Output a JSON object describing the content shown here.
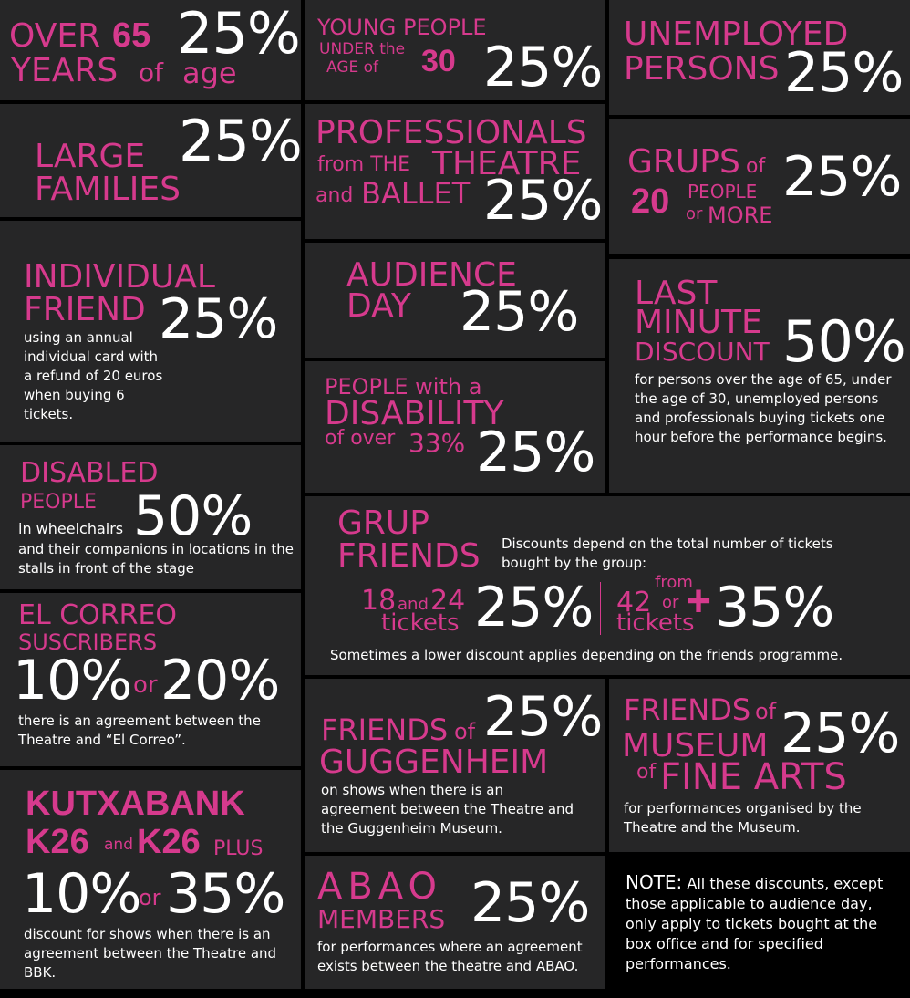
{
  "over65": {
    "over": "OVER",
    "num": "65",
    "years": "YEARS",
    "of": "of",
    "age": "age",
    "pct": "25%"
  },
  "young": {
    "line1": "YOUNG PEOPLE",
    "under": "UNDER the",
    "age": "AGE of",
    "num": "30",
    "pct": "25%"
  },
  "unemployed": {
    "line1": "UNEMPLOYED",
    "line2": "PERSONS",
    "pct": "25%"
  },
  "large": {
    "line1": "LARGE",
    "line2": "FAMILIES",
    "pct": "25%"
  },
  "professionals": {
    "line1": "PROFESSIONALS",
    "from": "from THE",
    "theatre": "THEATRE",
    "and": "and",
    "ballet": "BALLET",
    "pct": "25%"
  },
  "groups": {
    "grups": "GRUPS",
    "of": "of",
    "num": "20",
    "people": "PEOPLE",
    "or": "or",
    "more": "MORE",
    "pct": "25%"
  },
  "individual": {
    "line1": "INDIVIDUAL",
    "line2": "FRIEND",
    "pct": "25%",
    "desc": "using an annual individual card with a refund of 20 euros when buying 6 tickets."
  },
  "audience": {
    "line1": "AUDIENCE",
    "line2": "DAY",
    "pct": "25%"
  },
  "lastminute": {
    "line1": "LAST",
    "line2": "MINUTE",
    "line3": "DISCOUNT",
    "pct": "50%",
    "desc": "for persons over the age of 65, under the age of 30, unemployed persons and professionals buying tickets one hour before the performance begins."
  },
  "disability": {
    "line1": "PEOPLE with a",
    "line2": "DISABILITY",
    "of": "of over",
    "num": "33%",
    "pct": "25%"
  },
  "disabled": {
    "line1": "DISABLED",
    "line2": "PEOPLE",
    "in": "in wheelchairs",
    "pct": "50%",
    "desc": "and their companions in locations in the stalls in front of the stage"
  },
  "grupfriends": {
    "line1": "GRUP",
    "line2": "FRIENDS",
    "desc": "Discounts depend on the total number of tickets bought by the group:",
    "n1": "18",
    "and": "and",
    "n2": "24",
    "tickets1": "tickets",
    "pct1": "25%",
    "from": "from",
    "n3": "42",
    "or": "or",
    "tickets2": "tickets",
    "plus": "+",
    "pct2": "35%",
    "note": "Sometimes a lower discount applies depending on the friends programme."
  },
  "correo": {
    "line1": "EL CORREO",
    "line2": "SUSCRIBERS",
    "pct1": "10%",
    "or": "or",
    "pct2": "20%",
    "desc": "there is an agreement between the Theatre and “El Correo”."
  },
  "guggenheim": {
    "friends": "FRIENDS",
    "of": "of",
    "name": "GUGGENHEIM",
    "pct": "25%",
    "desc": "on shows when there is an agreement between the Theatre and the Guggenheim Museum."
  },
  "museum": {
    "friends": "FRIENDS",
    "of": "of",
    "museum": "MUSEUM",
    "of2": "of",
    "fine": "FINE ARTS",
    "pct": "25%",
    "desc": "for performances organised by the Theatre and the Museum."
  },
  "kutxa": {
    "line1": "KUTXABANK",
    "k26": "K26",
    "and": "and",
    "k26b": "K26",
    "plus": "PLUS",
    "pct1": "10%",
    "or": "or",
    "pct2": "35%",
    "desc": "discount for shows when there is an agreement between the Theatre and BBK."
  },
  "abao": {
    "line1": "ABAO",
    "line2": "MEMBERS",
    "pct": "25%",
    "desc": "for performances where an agreement exists between the theatre and ABAO."
  },
  "note": {
    "label": "NOTE:",
    "text": "All these discounts, except those applicable to audience day, only apply to tickets bought at the box office and for specified performances."
  }
}
